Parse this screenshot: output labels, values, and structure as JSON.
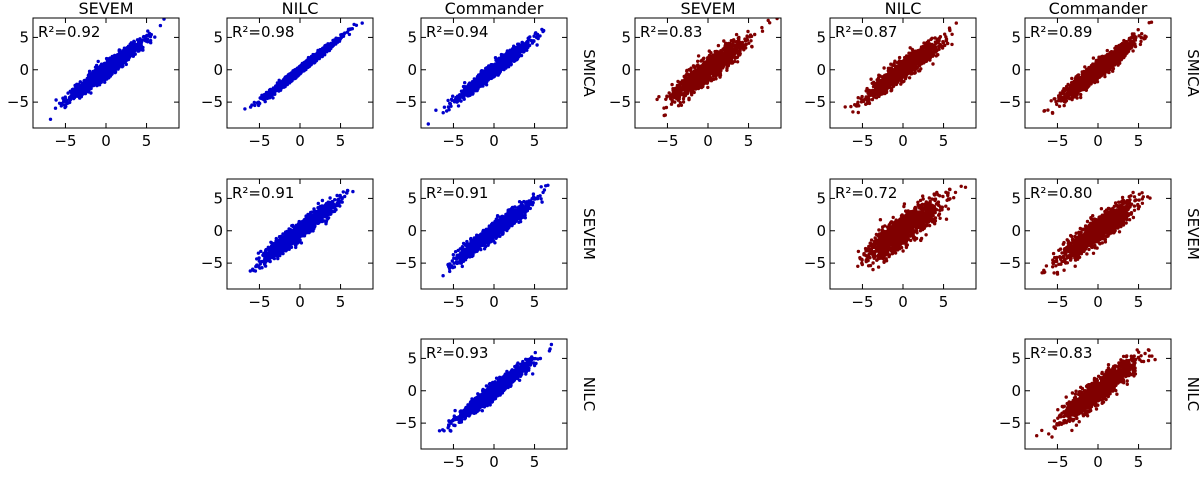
{
  "chart_data": [
    {
      "type": "scatter",
      "group": "left",
      "column": "SEVEM",
      "row": "SMICA",
      "r2_label": "R²=0.92",
      "r2": 0.92,
      "xlim": [
        -9,
        9
      ],
      "ylim": [
        -9,
        8
      ],
      "xticks": [
        -5,
        0,
        5
      ],
      "yticks": [
        5,
        0,
        -5
      ],
      "grid": false
    },
    {
      "type": "scatter",
      "group": "left",
      "column": "NILC",
      "row": "SMICA",
      "r2_label": "R²=0.98",
      "r2": 0.98,
      "xlim": [
        -9,
        9
      ],
      "ylim": [
        -9,
        8
      ],
      "xticks": [
        -5,
        0,
        5
      ],
      "yticks": [
        5,
        0,
        -5
      ],
      "grid": false
    },
    {
      "type": "scatter",
      "group": "left",
      "column": "Commander",
      "row": "SMICA",
      "r2_label": "R²=0.94",
      "r2": 0.94,
      "xlim": [
        -9,
        9
      ],
      "ylim": [
        -9,
        8
      ],
      "xticks": [
        -5,
        0,
        5
      ],
      "yticks": [
        5,
        0,
        -5
      ],
      "grid": false
    },
    {
      "type": "scatter",
      "group": "left",
      "column": "NILC",
      "row": "SEVEM",
      "r2_label": "R²=0.91",
      "r2": 0.91,
      "xlim": [
        -9,
        9
      ],
      "ylim": [
        -9,
        8
      ],
      "xticks": [
        -5,
        0,
        5
      ],
      "yticks": [
        5,
        0,
        -5
      ],
      "grid": false
    },
    {
      "type": "scatter",
      "group": "left",
      "column": "Commander",
      "row": "SEVEM",
      "r2_label": "R²=0.91",
      "r2": 0.91,
      "xlim": [
        -9,
        9
      ],
      "ylim": [
        -9,
        8
      ],
      "xticks": [
        -5,
        0,
        5
      ],
      "yticks": [
        5,
        0,
        -5
      ],
      "grid": false
    },
    {
      "type": "scatter",
      "group": "left",
      "column": "Commander",
      "row": "NILC",
      "r2_label": "R²=0.93",
      "r2": 0.93,
      "xlim": [
        -9,
        9
      ],
      "ylim": [
        -9,
        8
      ],
      "xticks": [
        -5,
        0,
        5
      ],
      "yticks": [
        5,
        0,
        -5
      ],
      "grid": false
    },
    {
      "type": "scatter",
      "group": "right",
      "column": "SEVEM",
      "row": "SMICA",
      "r2_label": "R²=0.83",
      "r2": 0.83,
      "xlim": [
        -9,
        9
      ],
      "ylim": [
        -9,
        8
      ],
      "xticks": [
        -5,
        0,
        5
      ],
      "yticks": [
        5,
        0,
        -5
      ],
      "grid": false
    },
    {
      "type": "scatter",
      "group": "right",
      "column": "NILC",
      "row": "SMICA",
      "r2_label": "R²=0.87",
      "r2": 0.87,
      "xlim": [
        -9,
        9
      ],
      "ylim": [
        -9,
        8
      ],
      "xticks": [
        -5,
        0,
        5
      ],
      "yticks": [
        5,
        0,
        -5
      ],
      "grid": false
    },
    {
      "type": "scatter",
      "group": "right",
      "column": "Commander",
      "row": "SMICA",
      "r2_label": "R²=0.89",
      "r2": 0.89,
      "xlim": [
        -9,
        9
      ],
      "ylim": [
        -9,
        8
      ],
      "xticks": [
        -5,
        0,
        5
      ],
      "yticks": [
        5,
        0,
        -5
      ],
      "grid": false
    },
    {
      "type": "scatter",
      "group": "right",
      "column": "NILC",
      "row": "SEVEM",
      "r2_label": "R²=0.72",
      "r2": 0.72,
      "xlim": [
        -9,
        9
      ],
      "ylim": [
        -9,
        8
      ],
      "xticks": [
        -5,
        0,
        5
      ],
      "yticks": [
        5,
        0,
        -5
      ],
      "grid": false
    },
    {
      "type": "scatter",
      "group": "right",
      "column": "Commander",
      "row": "SEVEM",
      "r2_label": "R²=0.80",
      "r2": 0.8,
      "xlim": [
        -9,
        9
      ],
      "ylim": [
        -9,
        8
      ],
      "xticks": [
        -5,
        0,
        5
      ],
      "yticks": [
        5,
        0,
        -5
      ],
      "grid": false
    },
    {
      "type": "scatter",
      "group": "right",
      "column": "Commander",
      "row": "NILC",
      "r2_label": "R²=0.83",
      "r2": 0.83,
      "xlim": [
        -9,
        9
      ],
      "ylim": [
        -9,
        8
      ],
      "xticks": [
        -5,
        0,
        5
      ],
      "yticks": [
        5,
        0,
        -5
      ],
      "grid": false
    }
  ],
  "colors": {
    "left": "#0000cc",
    "right": "#800000"
  }
}
